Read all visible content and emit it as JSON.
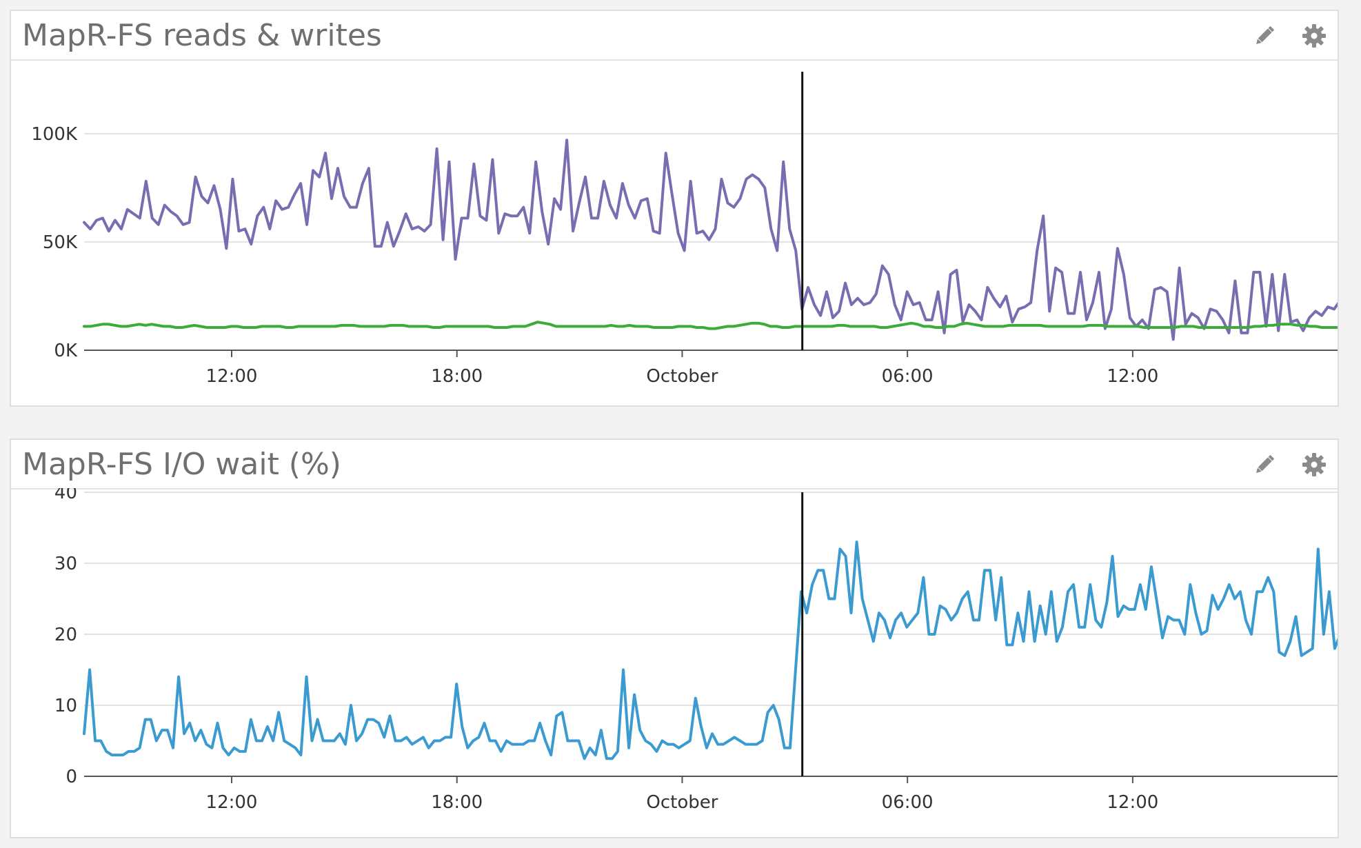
{
  "widgets": [
    {
      "title": "MapR-FS reads & writes",
      "icons": [
        "pencil-icon",
        "gear-icon"
      ]
    },
    {
      "title": "MapR-FS I/O wait (%)",
      "icons": [
        "pencil-icon",
        "gear-icon"
      ]
    }
  ],
  "colors": {
    "reads": "#7b6cb2",
    "writes": "#3cab3c",
    "iowait": "#3b9bd0",
    "marker": "#111111",
    "icon": "#8a8a8a"
  },
  "chart_data": [
    {
      "type": "line",
      "title": "MapR-FS reads & writes",
      "x_ticks": [
        "12:00",
        "18:00",
        "October",
        "06:00",
        "12:00"
      ],
      "x_tick_hours": [
        12,
        18,
        24,
        30,
        36
      ],
      "xlim_hours": [
        8.07,
        41.53
      ],
      "y_ticks": [
        "0K",
        "50K",
        "100K"
      ],
      "y_tick_values": [
        0,
        50000,
        100000
      ],
      "ylim": [
        0,
        120000
      ],
      "grid": true,
      "marker_line_hour": 27.2,
      "series": [
        {
          "color": "#7b6cb2",
          "values": [
            59000,
            56000,
            60000,
            61000,
            55000,
            60000,
            56000,
            65000,
            63000,
            61000,
            78000,
            61000,
            58000,
            67000,
            64000,
            62000,
            58000,
            59000,
            80000,
            71000,
            68000,
            76000,
            65000,
            47000,
            79000,
            55000,
            56000,
            49000,
            62000,
            66000,
            56000,
            69000,
            65000,
            66000,
            72000,
            77000,
            58000,
            83000,
            80000,
            91000,
            70000,
            84000,
            71000,
            66000,
            66000,
            77000,
            84000,
            48000,
            48000,
            59000,
            48000,
            55000,
            63000,
            56000,
            57000,
            55000,
            58000,
            93000,
            51000,
            87000,
            42000,
            61000,
            61000,
            86000,
            62000,
            60000,
            88000,
            54000,
            63000,
            62000,
            62000,
            66000,
            54000,
            87000,
            64000,
            49000,
            70000,
            65000,
            97000,
            55000,
            68000,
            80000,
            61000,
            61000,
            78000,
            67000,
            61000,
            77000,
            67000,
            61000,
            69000,
            70000,
            55000,
            54000,
            91000,
            72000,
            54000,
            46000,
            78000,
            54000,
            55000,
            51000,
            56000,
            79000,
            68000,
            66000,
            70000,
            79000,
            81000,
            79000,
            75000,
            56000,
            46000,
            87000,
            56000,
            46000,
            19000,
            29000,
            21000,
            16000,
            27000,
            15000,
            18000,
            31000,
            21000,
            24000,
            21000,
            22000,
            26000,
            39000,
            35000,
            21000,
            14000,
            27000,
            21000,
            22000,
            14000,
            14000,
            27000,
            8000,
            35000,
            37000,
            13000,
            21000,
            18000,
            14000,
            29000,
            24000,
            20000,
            25000,
            13000,
            19000,
            20000,
            22000,
            46000,
            62000,
            18000,
            38000,
            36000,
            17000,
            17000,
            36000,
            14000,
            22000,
            36000,
            10000,
            19000,
            47000,
            35000,
            15000,
            11000,
            14000,
            10000,
            28000,
            29000,
            27000,
            5000,
            38000,
            12000,
            17000,
            15000,
            10000,
            19000,
            18000,
            14000,
            8000,
            32000,
            8000,
            8000,
            36000,
            36000,
            11000,
            35000,
            9000,
            35000,
            13000,
            14000,
            9000,
            15000,
            18000,
            16000,
            20000,
            19000,
            23000
          ]
        },
        {
          "color": "#3cab3c",
          "values": [
            11000,
            11000,
            11500,
            12000,
            12000,
            11500,
            11000,
            11000,
            11500,
            12000,
            11500,
            12000,
            11500,
            11000,
            11000,
            10500,
            10500,
            11000,
            11500,
            11000,
            10500,
            10500,
            10500,
            10500,
            11000,
            11000,
            10500,
            10500,
            10500,
            11000,
            11000,
            11000,
            11000,
            10500,
            10500,
            11000,
            11000,
            11000,
            11000,
            11000,
            11000,
            11000,
            11500,
            11500,
            11500,
            11000,
            11000,
            11000,
            11000,
            11000,
            11500,
            11500,
            11500,
            11000,
            11000,
            11000,
            11000,
            10500,
            10500,
            11000,
            11000,
            11000,
            11000,
            11000,
            11000,
            11000,
            11000,
            10500,
            10500,
            10500,
            11000,
            11000,
            11000,
            12000,
            13000,
            12500,
            12000,
            11000,
            11000,
            11000,
            11000,
            11000,
            11000,
            11000,
            11000,
            11000,
            11500,
            11000,
            11000,
            11500,
            11000,
            11000,
            11000,
            10500,
            10500,
            10500,
            10500,
            11000,
            11000,
            11000,
            10500,
            10500,
            10000,
            10000,
            10500,
            11000,
            11000,
            11500,
            12000,
            12500,
            12500,
            12000,
            11000,
            11000,
            10500,
            10500,
            11000,
            11000,
            11000,
            11000,
            11000,
            11000,
            11000,
            11500,
            11500,
            11000,
            11000,
            11000,
            11000,
            11000,
            10500,
            10500,
            11000,
            11500,
            12000,
            12500,
            12000,
            11000,
            11000,
            10500,
            10500,
            11000,
            11000,
            12000,
            12500,
            12000,
            11500,
            11000,
            11000,
            11000,
            11000,
            11500,
            11500,
            11500,
            11500,
            11500,
            11500,
            11000,
            11000,
            11000,
            11000,
            11000,
            11000,
            11000,
            11500,
            11500,
            11500,
            11000,
            11000,
            11000,
            11000,
            11000,
            11000,
            10500,
            10500,
            10500,
            10500,
            10500,
            10500,
            11000,
            11000,
            11000,
            10500,
            10500,
            10500,
            10500,
            10500,
            10500,
            10500,
            10500,
            10500,
            11000,
            11000,
            11500,
            11500,
            12000,
            12000,
            12000,
            11500,
            11500,
            11000,
            11000,
            10500,
            10500,
            10500,
            10500
          ]
        }
      ]
    },
    {
      "type": "line",
      "title": "MapR-FS I/O wait (%)",
      "x_ticks": [
        "12:00",
        "18:00",
        "October",
        "06:00",
        "12:00"
      ],
      "x_tick_hours": [
        12,
        18,
        24,
        30,
        36
      ],
      "xlim_hours": [
        8.07,
        41.53
      ],
      "y_ticks": [
        "0",
        "10",
        "20",
        "30",
        "40"
      ],
      "y_tick_values": [
        0,
        10,
        20,
        30,
        40
      ],
      "ylim": [
        0,
        40
      ],
      "grid": true,
      "marker_line_hour": 27.2,
      "series": [
        {
          "color": "#3b9bd0",
          "values": [
            6,
            15,
            5,
            5,
            3.5,
            3,
            3,
            3,
            3.5,
            3.5,
            4,
            8,
            8,
            5,
            6.5,
            6.5,
            4,
            14,
            6,
            7.5,
            5,
            6.5,
            4.5,
            4,
            7.5,
            4,
            3,
            4,
            3.5,
            3.5,
            8,
            5,
            5,
            7,
            5,
            9,
            5,
            4.5,
            4,
            3,
            14,
            5,
            8,
            5,
            5,
            5,
            6,
            4.5,
            10,
            5,
            6,
            8,
            8,
            7.5,
            5.5,
            8.5,
            5,
            5,
            5.5,
            4.5,
            5,
            5.5,
            4,
            5,
            5,
            5.5,
            5.5,
            13,
            7,
            4,
            5,
            5.5,
            7.5,
            5,
            5,
            3.5,
            5,
            4.5,
            4.5,
            4.5,
            5,
            5,
            7.5,
            5,
            3,
            8.5,
            9,
            5,
            5,
            5,
            2.5,
            4,
            3,
            6.5,
            2.5,
            2.5,
            3.5,
            15,
            4,
            11.5,
            6.5,
            5,
            4.5,
            3.5,
            5,
            4.5,
            4.5,
            4,
            4.5,
            5,
            11,
            7,
            4,
            6,
            4.5,
            4.5,
            5,
            5.5,
            5,
            4.5,
            4.5,
            4.5,
            5,
            9,
            10,
            8,
            4,
            4,
            15,
            26,
            23,
            27,
            29,
            29,
            25,
            25,
            32,
            31,
            23,
            33,
            25,
            22,
            19,
            23,
            22,
            19.5,
            22,
            23,
            21,
            22,
            23,
            28,
            20,
            20,
            24,
            23.5,
            22,
            23,
            25,
            26,
            22,
            22,
            29,
            29,
            22,
            28,
            18.5,
            18.5,
            23,
            19,
            26,
            19,
            24,
            20,
            26,
            19,
            21,
            26,
            27,
            21,
            21,
            27,
            22,
            21,
            24.5,
            31,
            22.5,
            24,
            23.5,
            23.5,
            27,
            23.5,
            29.5,
            24.5,
            19.5,
            22.5,
            22,
            22,
            20,
            27,
            23,
            20,
            20.5,
            25.5,
            23.5,
            25,
            27,
            25,
            26,
            22,
            20,
            26,
            26,
            28,
            26,
            17.5,
            17,
            19,
            22.5,
            17,
            17.5,
            18,
            32,
            20,
            26,
            18,
            20
          ]
        }
      ]
    }
  ]
}
